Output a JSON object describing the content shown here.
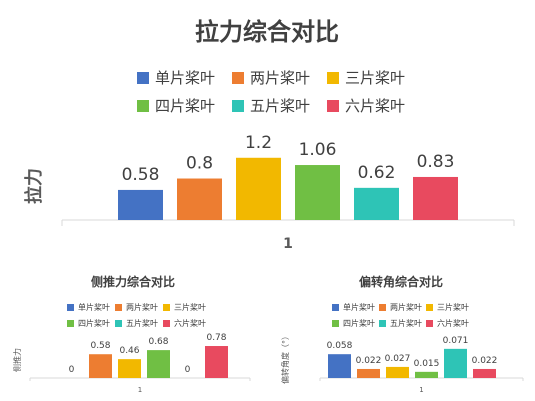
{
  "chart_data": [
    {
      "type": "bar",
      "title": "拉力综合对比",
      "xlabel": "",
      "ylabel": "拉力",
      "categories": [
        "1"
      ],
      "series": [
        {
          "name": "单片桨叶",
          "values": [
            0.58
          ],
          "color": "#4472C4"
        },
        {
          "name": "两片桨叶",
          "values": [
            0.8
          ],
          "color": "#ED7D31"
        },
        {
          "name": "三片桨叶",
          "values": [
            1.2
          ],
          "color": "#F2B800"
        },
        {
          "name": "四片桨叶",
          "values": [
            1.06
          ],
          "color": "#70BF44"
        },
        {
          "name": "五片桨叶",
          "values": [
            0.62
          ],
          "color": "#2EC4B6"
        },
        {
          "name": "六片桨叶",
          "values": [
            0.83
          ],
          "color": "#E84A5F"
        }
      ],
      "data_labels": [
        "0.58",
        "0.8",
        "1.2",
        "1.06",
        "0.62",
        "0.83"
      ],
      "ylim": [
        0,
        1.35
      ],
      "grid": false,
      "legend": "top"
    },
    {
      "type": "bar",
      "title": "侧推力综合对比",
      "xlabel": "",
      "ylabel": "侧推力",
      "categories": [
        "1"
      ],
      "series": [
        {
          "name": "单片桨叶",
          "values": [
            0
          ],
          "color": "#4472C4"
        },
        {
          "name": "两片桨叶",
          "values": [
            0.58
          ],
          "color": "#ED7D31"
        },
        {
          "name": "三片桨叶",
          "values": [
            0.46
          ],
          "color": "#F2B800"
        },
        {
          "name": "四片桨叶",
          "values": [
            0.68
          ],
          "color": "#70BF44"
        },
        {
          "name": "五片桨叶",
          "values": [
            0
          ],
          "color": "#2EC4B6"
        },
        {
          "name": "六片桨叶",
          "values": [
            0.78
          ],
          "color": "#E84A5F"
        }
      ],
      "data_labels": [
        "0",
        "0.58",
        "0.46",
        "0.68",
        "0",
        "0.78"
      ],
      "ylim": [
        0,
        1.0
      ],
      "grid": false,
      "legend": "top"
    },
    {
      "type": "bar",
      "title": "偏转角综合对比",
      "xlabel": "",
      "ylabel": "偏转角度（°）",
      "categories": [
        "1"
      ],
      "series": [
        {
          "name": "单片桨叶",
          "values": [
            0.058
          ],
          "color": "#4472C4"
        },
        {
          "name": "两片桨叶",
          "values": [
            0.022
          ],
          "color": "#ED7D31"
        },
        {
          "name": "三片桨叶",
          "values": [
            0.027
          ],
          "color": "#F2B800"
        },
        {
          "name": "四片桨叶",
          "values": [
            0.015
          ],
          "color": "#70BF44"
        },
        {
          "name": "五片桨叶",
          "values": [
            0.071
          ],
          "color": "#2EC4B6"
        },
        {
          "name": "六片桨叶",
          "values": [
            0.022
          ],
          "color": "#E84A5F"
        }
      ],
      "data_labels": [
        "0.058",
        "0.022",
        "0.027",
        "0.015",
        "0.071",
        "0.022"
      ],
      "ylim": [
        0,
        0.095
      ],
      "grid": false,
      "legend": "top"
    }
  ]
}
